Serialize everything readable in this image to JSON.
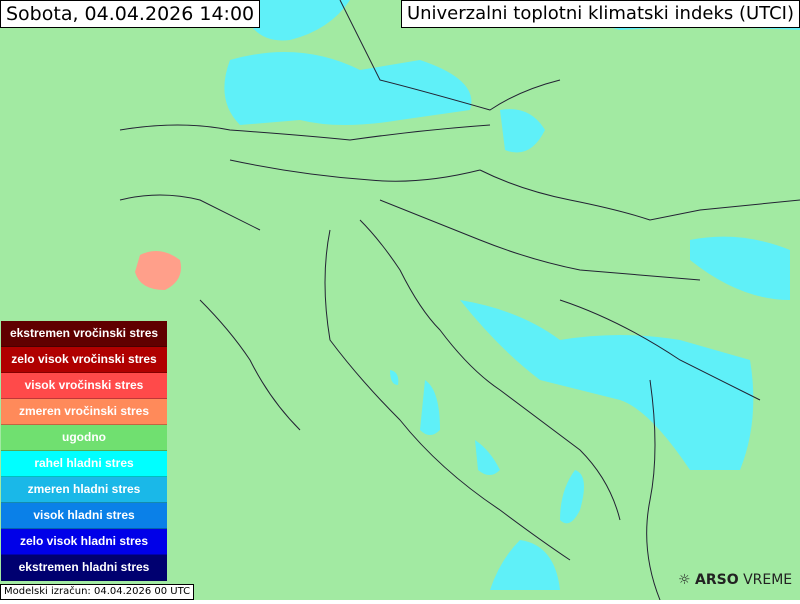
{
  "header": {
    "date_title": "Sobota, 04.04.2026 14:00",
    "map_title": "Univerzalni toplotni klimatski indeks (UTCI)"
  },
  "legend": [
    {
      "label": "ekstremen vročinski stres",
      "color": "#600000"
    },
    {
      "label": "zelo visok vročinski stres",
      "color": "#b00000"
    },
    {
      "label": "visok vročinski stres",
      "color": "#ff4a4a"
    },
    {
      "label": "zmeren vročinski stres",
      "color": "#ff8a5a"
    },
    {
      "label": "ugodno",
      "color": "#70e070"
    },
    {
      "label": "rahel hladni stres",
      "color": "#00ffff"
    },
    {
      "label": "zmeren hladni stres",
      "color": "#1ab8e8"
    },
    {
      "label": "visok hladni stres",
      "color": "#0a80e8"
    },
    {
      "label": "zelo visok hladni stres",
      "color": "#0000e8"
    },
    {
      "label": "ekstremen hladni stres",
      "color": "#000070"
    }
  ],
  "footer": {
    "model_run": "Modelski izračun: 04.04.2026 00 UTC"
  },
  "logo": {
    "bold": "ARSO",
    "light": " VREME"
  },
  "colors": {
    "background": "#a2eaa2",
    "cold_patch": "#5ff0f8",
    "warm_patch": "#ff9f8a"
  }
}
